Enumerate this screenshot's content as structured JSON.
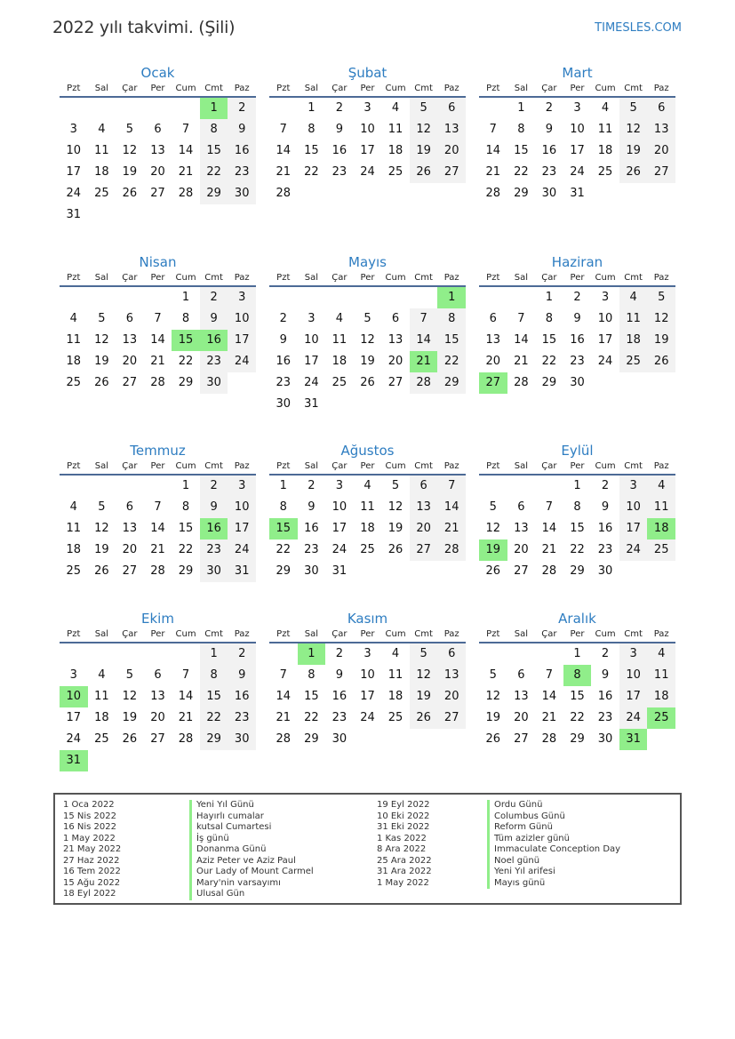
{
  "header": {
    "title": "2022 yılı takvimi. (Şili)",
    "site": "TIMESLES.COM"
  },
  "year": 2022,
  "colors": {
    "accent": "#2e7dc1",
    "holiday": "#90ee8a",
    "weekend": "#f2f2f2"
  },
  "weekdays": [
    "Pzt",
    "Sal",
    "Çar",
    "Per",
    "Cum",
    "Cmt",
    "Paz"
  ],
  "months": [
    {
      "name": "Ocak",
      "holidays": [
        1
      ]
    },
    {
      "name": "Şubat",
      "holidays": []
    },
    {
      "name": "Mart",
      "holidays": []
    },
    {
      "name": "Nisan",
      "holidays": [
        15,
        16
      ]
    },
    {
      "name": "Mayıs",
      "holidays": [
        1,
        21
      ]
    },
    {
      "name": "Haziran",
      "holidays": [
        27
      ]
    },
    {
      "name": "Temmuz",
      "holidays": [
        16
      ]
    },
    {
      "name": "Ağustos",
      "holidays": [
        15
      ]
    },
    {
      "name": "Eylül",
      "holidays": [
        18,
        19
      ]
    },
    {
      "name": "Ekim",
      "holidays": [
        10,
        31
      ]
    },
    {
      "name": "Kasım",
      "holidays": [
        1
      ]
    },
    {
      "name": "Aralık",
      "holidays": [
        8,
        25,
        31
      ]
    }
  ],
  "legend": {
    "left": [
      {
        "date": "1 Oca 2022",
        "name": "Yeni Yıl Günü"
      },
      {
        "date": "15 Nis 2022",
        "name": "Hayırlı cumalar"
      },
      {
        "date": "16 Nis 2022",
        "name": "kutsal Cumartesi"
      },
      {
        "date": "1 May 2022",
        "name": "İş günü"
      },
      {
        "date": "21 May 2022",
        "name": "Donanma Günü"
      },
      {
        "date": "27 Haz 2022",
        "name": "Aziz Peter ve Aziz Paul"
      },
      {
        "date": "16 Tem 2022",
        "name": "Our Lady of Mount Carmel"
      },
      {
        "date": "15 Ağu 2022",
        "name": "Mary'nin varsayımı"
      },
      {
        "date": "18 Eyl 2022",
        "name": "Ulusal Gün"
      }
    ],
    "right": [
      {
        "date": "19 Eyl 2022",
        "name": "Ordu Günü"
      },
      {
        "date": "10 Eki 2022",
        "name": "Columbus Günü"
      },
      {
        "date": "31 Eki 2022",
        "name": "Reform Günü"
      },
      {
        "date": "1 Kas 2022",
        "name": "Tüm azizler günü"
      },
      {
        "date": "8 Ara 2022",
        "name": "Immaculate Conception Day"
      },
      {
        "date": "25 Ara 2022",
        "name": "Noel günü"
      },
      {
        "date": "31 Ara 2022",
        "name": "Yeni Yıl arifesi"
      },
      {
        "date": "1 May 2022",
        "name": "Mayıs günü"
      }
    ]
  }
}
